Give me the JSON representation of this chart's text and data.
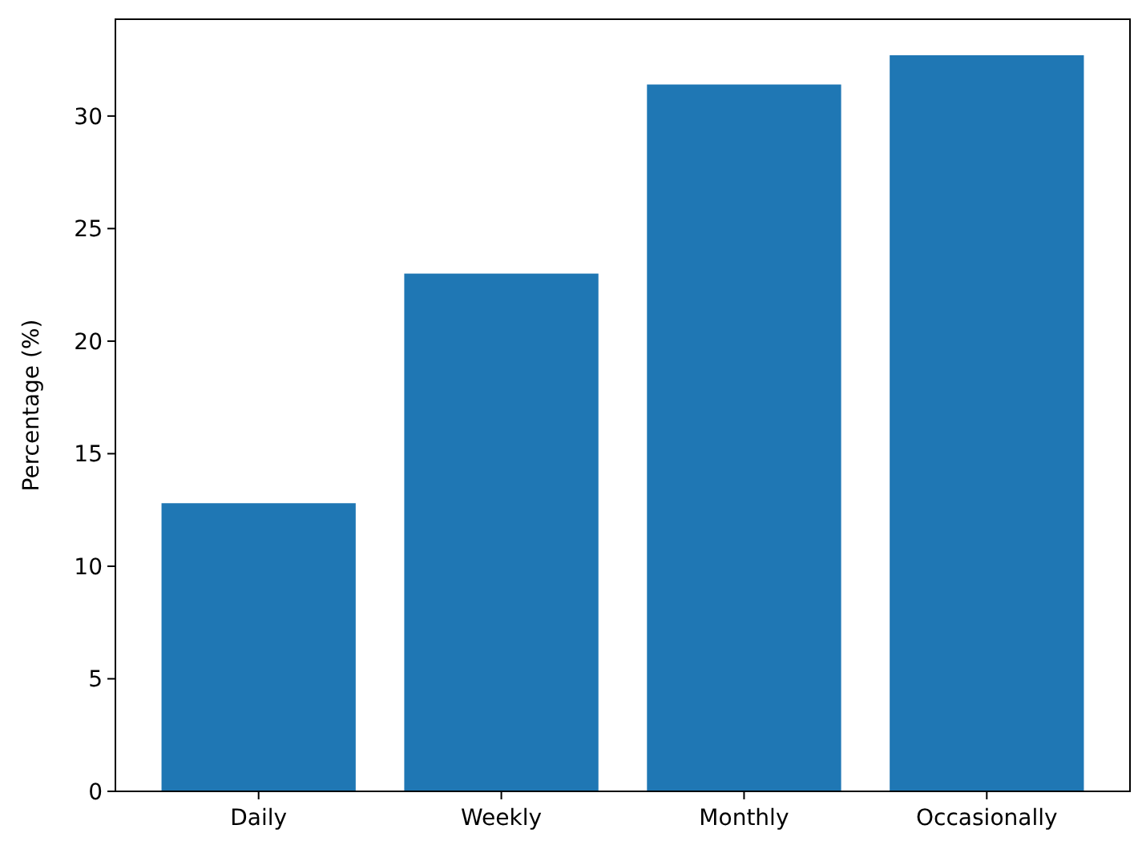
{
  "chart_data": {
    "type": "bar",
    "ylabel": "Percentage (%)",
    "categories": [
      "Daily",
      "Weekly",
      "Monthly",
      "Occasionally"
    ],
    "values": [
      12.8,
      23.0,
      31.4,
      32.7
    ],
    "color": "#1f77b4",
    "ylim": [
      0,
      34.3
    ],
    "yticks": [
      0,
      5,
      10,
      15,
      20,
      25,
      30
    ],
    "grid": false
  }
}
